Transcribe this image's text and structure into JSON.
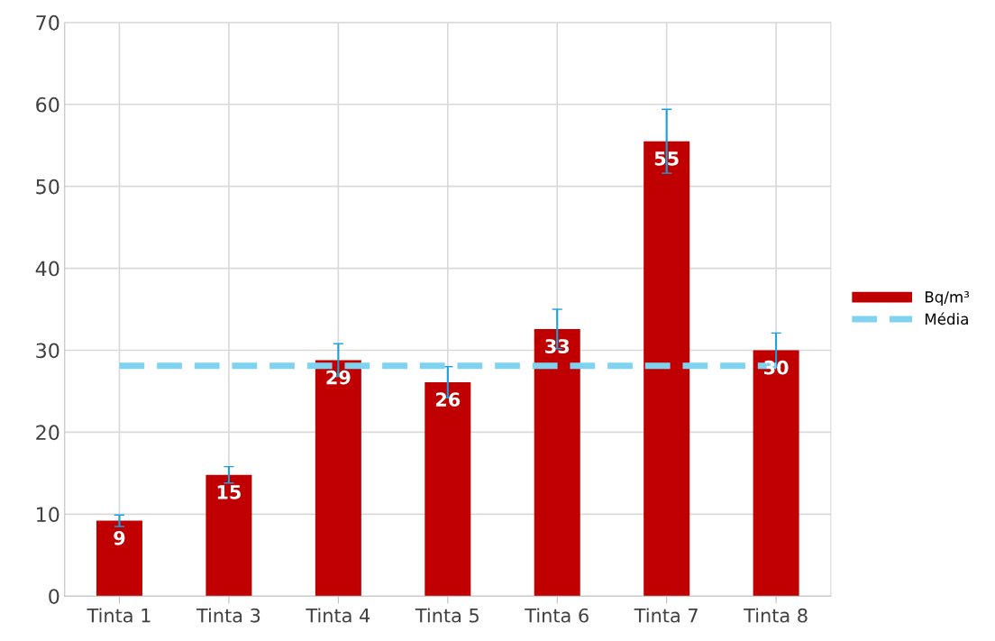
{
  "chart_data": {
    "type": "bar",
    "categories": [
      "Tinta 1",
      "Tinta 3",
      "Tinta 4",
      "Tinta 5",
      "Tinta 6",
      "Tinta 7",
      "Tinta 8"
    ],
    "series": [
      {
        "name": "Bq/m³",
        "color": "#c00000",
        "values": [
          9.2,
          14.8,
          28.8,
          26.1,
          32.6,
          55.5,
          30.0
        ],
        "errors": [
          0.7,
          1.0,
          2.0,
          1.9,
          2.4,
          3.9,
          2.1
        ],
        "value_labels": [
          "9",
          "15",
          "29",
          "26",
          "33",
          "55",
          "30"
        ]
      },
      {
        "name": "Média",
        "type": "line",
        "color": "#7fd3f0",
        "line_style": "dashed",
        "values": [
          28.1,
          28.1,
          28.1,
          28.1,
          28.1,
          28.1,
          28.1
        ]
      }
    ],
    "ylim": [
      0,
      70
    ],
    "yticks": [
      0,
      10,
      20,
      30,
      40,
      50,
      60,
      70
    ],
    "grid": true,
    "legend": "right"
  }
}
